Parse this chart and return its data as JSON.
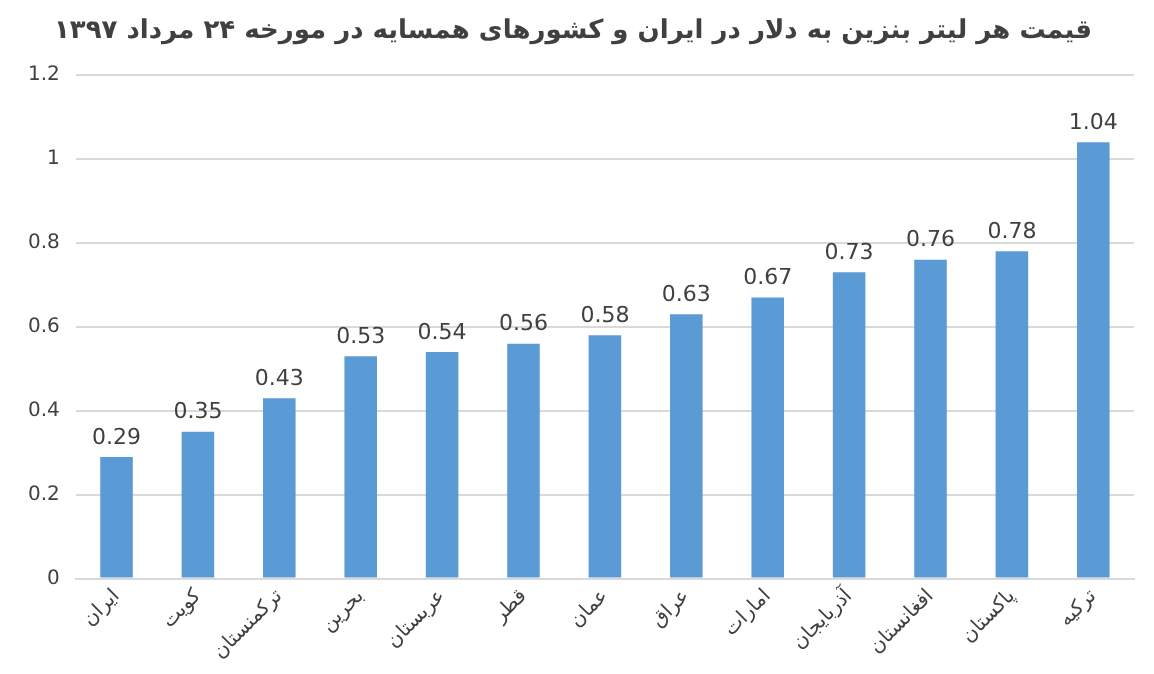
{
  "chart_data": {
    "type": "bar",
    "title": "قیمت هر لیتر بنزین به دلار در ایران و کشورهای همسایه در مورخه ۲۴ مرداد ۱۳۹۷",
    "categories": [
      "ایران",
      "کویت",
      "ترکمنستان",
      "بحرین",
      "عربستان",
      "قطر",
      "عمان",
      "عراق",
      "امارات",
      "آذربایجان",
      "افغانستان",
      "پاکستان",
      "ترکیه"
    ],
    "values": [
      0.29,
      0.35,
      0.43,
      0.53,
      0.54,
      0.56,
      0.58,
      0.63,
      0.67,
      0.73,
      0.76,
      0.78,
      1.04
    ],
    "color": "#5b9bd5",
    "ylim": [
      0,
      1.2
    ],
    "yticks": [
      0,
      0.2,
      0.4,
      0.6,
      0.8,
      1,
      1.2
    ],
    "grid": "y",
    "data_labels": true
  }
}
